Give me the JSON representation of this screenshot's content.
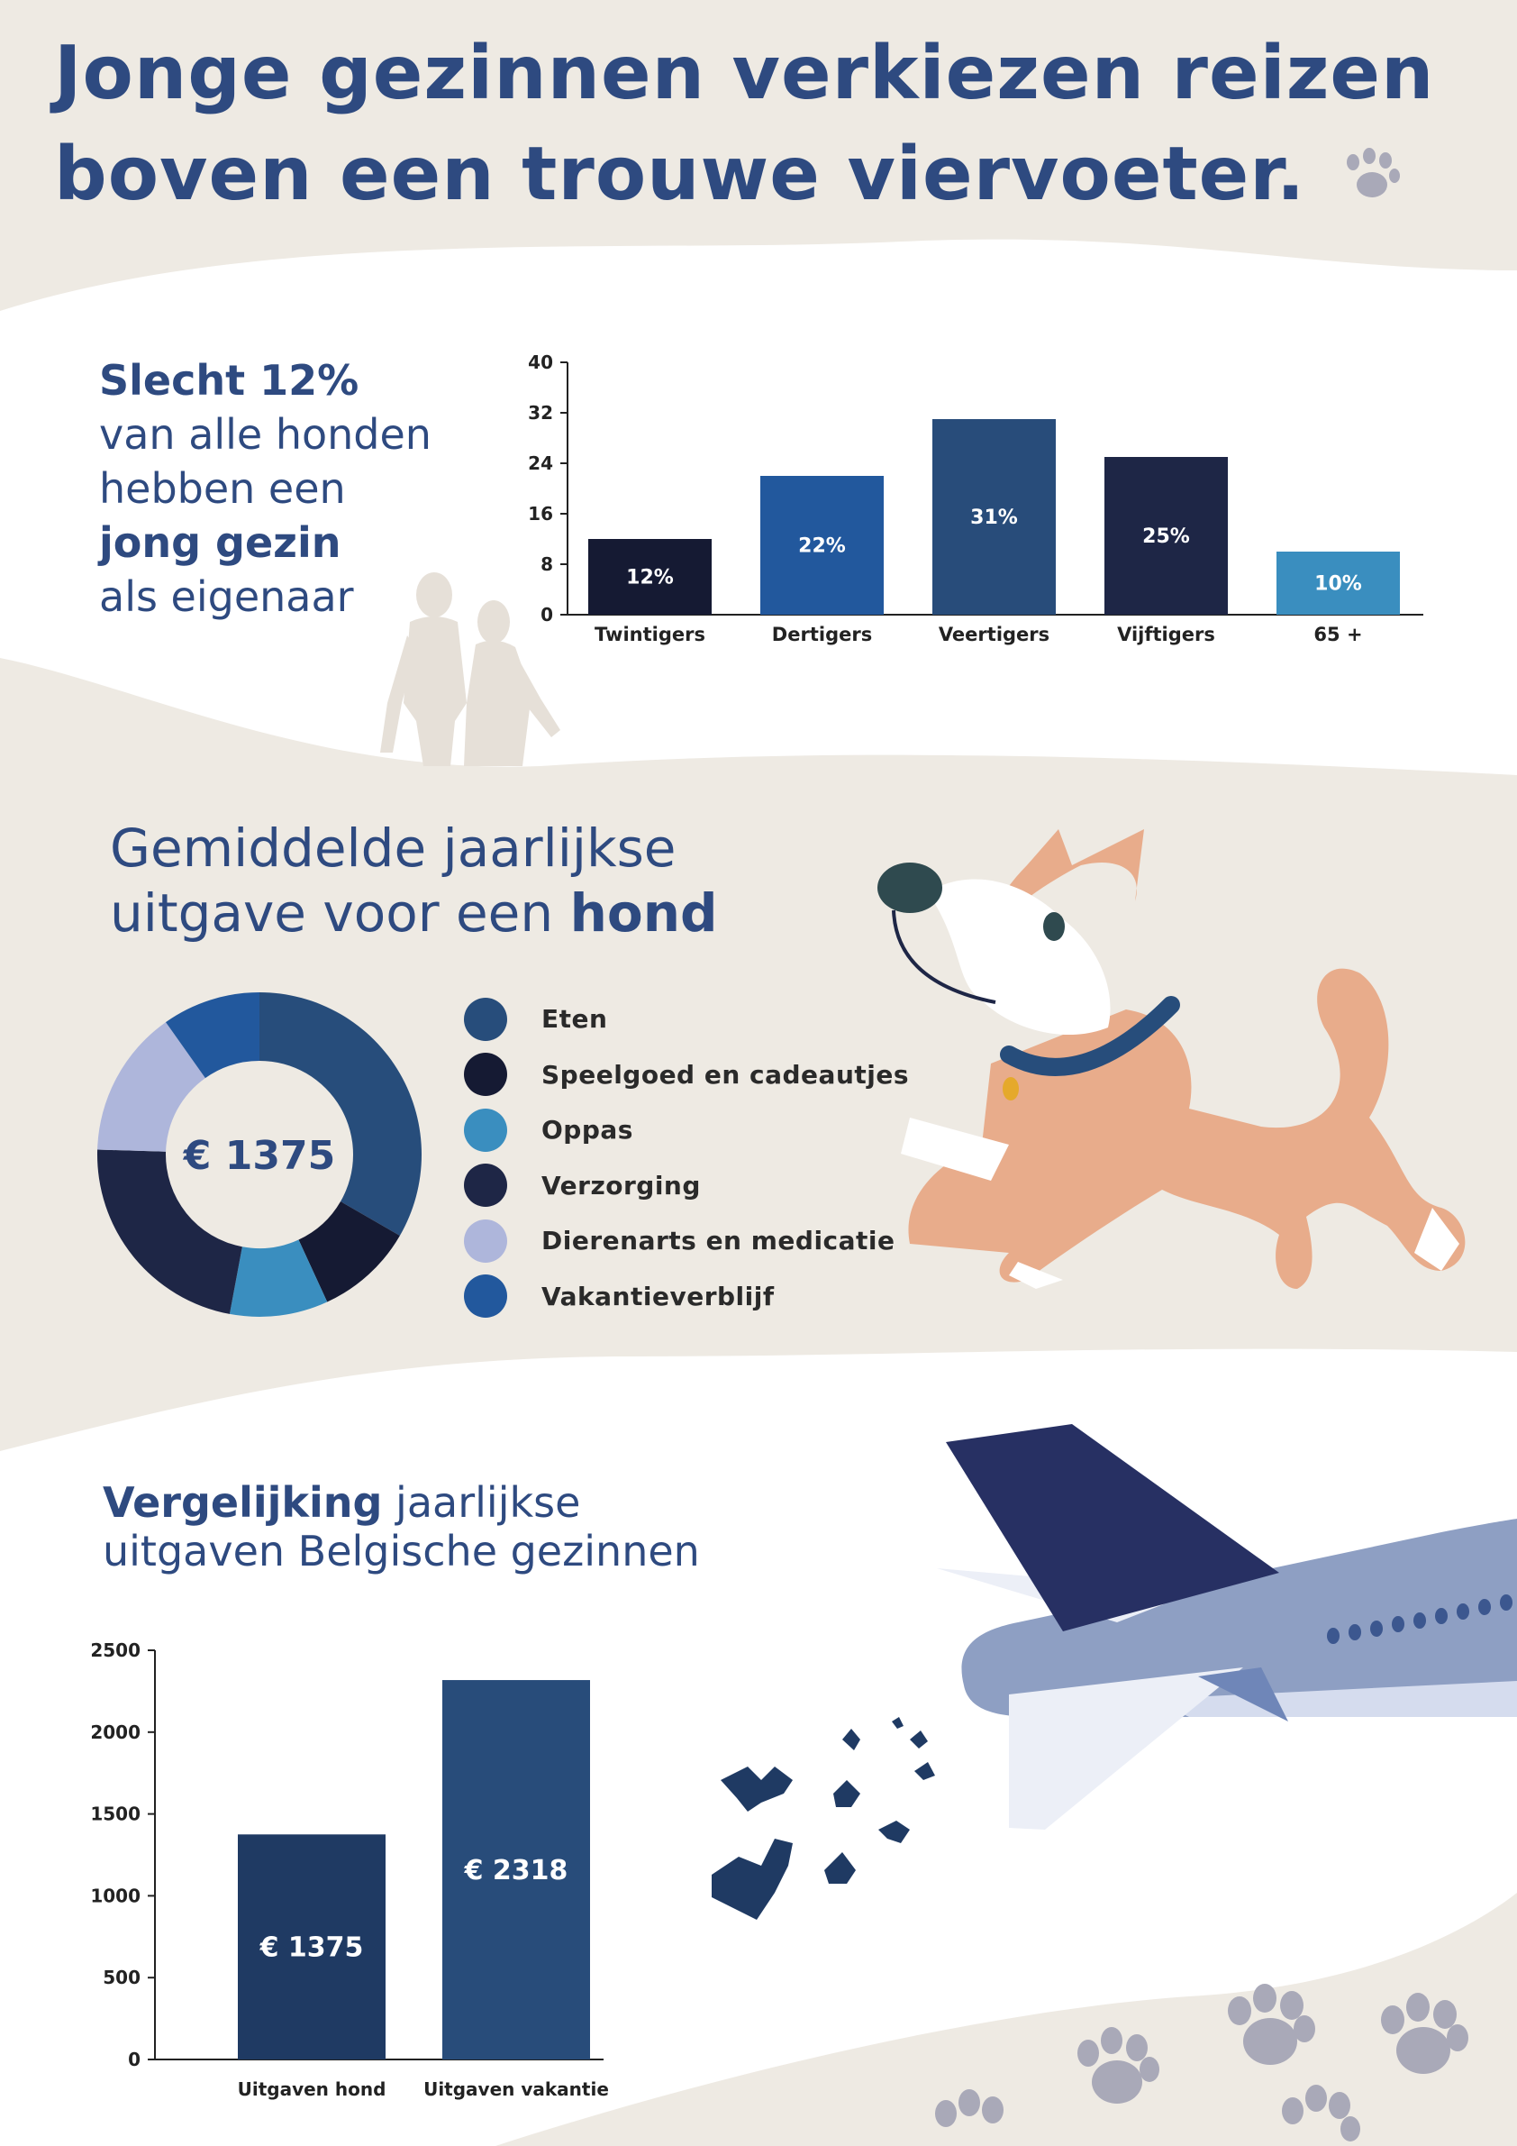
{
  "header": {
    "title_line1": "Jonge gezinnen verkiezen reizen",
    "title_line2": "boven een trouwe viervoeter.",
    "icon": "paw-icon"
  },
  "owners_section": {
    "line1": "Slecht 12%",
    "line2": "van alle honden",
    "line3": "hebben een",
    "line4": "jong gezin",
    "line5": "als eigenaar",
    "illustration": "couple-silhouette"
  },
  "spending_section": {
    "title_line1": "Gemiddelde jaarlijkse",
    "title_line2_regular": "uitgave voor een ",
    "title_line2_bold": "hond",
    "illustration": "dog-illustration"
  },
  "comparison_section": {
    "title_bold": "Vergelijking",
    "title_rest": " jaarlijkse",
    "title_line2": "uitgaven Belgische gezinnen",
    "illustration": "airplane-with-dogs"
  },
  "colors": {
    "navy": "#2e4a80",
    "beige": "#eeeae3",
    "paw": "#a9a9b8"
  },
  "chart_data": [
    {
      "type": "bar",
      "categories": [
        "Twintigers",
        "Dertigers",
        "Veertigers",
        "Vijftigers",
        "65 +"
      ],
      "values": [
        12,
        22,
        31,
        25,
        10
      ],
      "value_labels": [
        "12%",
        "22%",
        "31%",
        "25%",
        "10%"
      ],
      "colors": [
        "#151a33",
        "#22589d",
        "#284c7a",
        "#1e2646",
        "#3a8ebf"
      ],
      "yticks": [
        "0",
        "8",
        "16",
        "24",
        "32",
        "40"
      ],
      "ylim": [
        0,
        40
      ],
      "title": "",
      "xlabel": "",
      "ylabel": ""
    },
    {
      "type": "pie",
      "center_label": "€ 1375",
      "labels": [
        "Eten",
        "Speelgoed en cadeautjes",
        "Oppas",
        "Verzorging",
        "Dierenarts en medicatie",
        "Vakantieverblijf"
      ],
      "values": [
        34,
        10,
        10,
        23,
        15,
        10
      ],
      "colors": [
        "#274d7b",
        "#151a33",
        "#3a8ebf",
        "#1e2646",
        "#aeb6db",
        "#22589d"
      ],
      "legend": "right"
    },
    {
      "type": "bar",
      "categories": [
        "Uitgaven hond",
        "Uitgaven vakantie"
      ],
      "values": [
        1375,
        2318
      ],
      "value_labels": [
        "€ 1375",
        "€ 2318"
      ],
      "colors": [
        "#1f3a63",
        "#284c7a"
      ],
      "yticks": [
        "0",
        "500",
        "1000",
        "1500",
        "2000",
        "2500"
      ],
      "ylim": [
        0,
        2500
      ],
      "title": "",
      "xlabel": "",
      "ylabel": ""
    }
  ]
}
